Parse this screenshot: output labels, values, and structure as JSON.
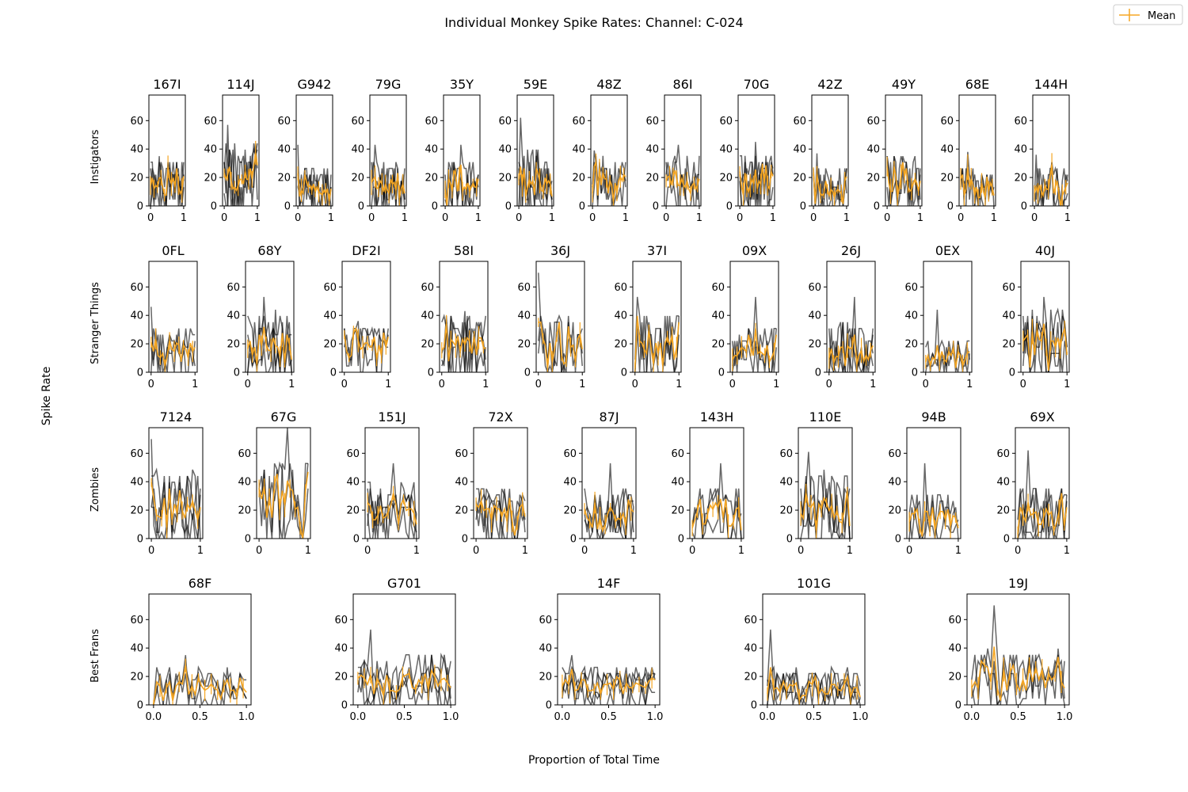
{
  "figure": {
    "title": "Individual Monkey Spike Rates: Channel: C-024",
    "xlabel": "Proportion of Total Time",
    "ylabel": "Spike Rate",
    "legend": {
      "label": "Mean",
      "placement": "top-right",
      "color": "#f5a623"
    }
  },
  "colors": {
    "trace": "#000000",
    "trace_opacity": 0.6,
    "mean": "#f5a623",
    "axes": "#000000"
  },
  "chart_data": {
    "type": "line",
    "ylim": [
      0,
      78
    ],
    "yticks": [
      0,
      20,
      40,
      60
    ],
    "grid": false,
    "groups": [
      {
        "name": "Instigators",
        "xlim": [
          -0.05,
          1.05
        ],
        "xticks": [
          0,
          1
        ],
        "xtick_labels": [
          "0",
          "1"
        ],
        "panels": [
          {
            "id": "167I",
            "peak": 35,
            "level": 15
          },
          {
            "id": "114J",
            "peak": 57,
            "level": 20
          },
          {
            "id": "G942",
            "peak": 43,
            "level": 14
          },
          {
            "id": "79G",
            "peak": 43,
            "level": 15
          },
          {
            "id": "35Y",
            "peak": 43,
            "level": 15
          },
          {
            "id": "59E",
            "peak": 62,
            "level": 18
          },
          {
            "id": "48Z",
            "peak": 39,
            "level": 16
          },
          {
            "id": "86I",
            "peak": 43,
            "level": 16
          },
          {
            "id": "70G",
            "peak": 45,
            "level": 17
          },
          {
            "id": "42Z",
            "peak": 37,
            "level": 13
          },
          {
            "id": "49Y",
            "peak": 35,
            "level": 17
          },
          {
            "id": "68E",
            "peak": 38,
            "level": 13
          },
          {
            "id": "144H",
            "peak": 36,
            "level": 14
          }
        ]
      },
      {
        "name": "Stranger Things",
        "xlim": [
          -0.05,
          1.05
        ],
        "xticks": [
          0,
          1
        ],
        "xtick_labels": [
          "0",
          "1"
        ],
        "panels": [
          {
            "id": "0FL",
            "peak": 46,
            "level": 14
          },
          {
            "id": "68Y",
            "peak": 53,
            "level": 20
          },
          {
            "id": "DF2I",
            "peak": 36,
            "level": 15
          },
          {
            "id": "58I",
            "peak": 43,
            "level": 18
          },
          {
            "id": "36J",
            "peak": 70,
            "level": 18
          },
          {
            "id": "37I",
            "peak": 53,
            "level": 18
          },
          {
            "id": "09X",
            "peak": 53,
            "level": 15
          },
          {
            "id": "26J",
            "peak": 53,
            "level": 16
          },
          {
            "id": "0EX",
            "peak": 44,
            "level": 10
          },
          {
            "id": "40J",
            "peak": 53,
            "level": 20
          }
        ]
      },
      {
        "name": "Zombies",
        "xlim": [
          -0.05,
          1.05
        ],
        "xticks": [
          0,
          1
        ],
        "xtick_labels": [
          "0",
          "1"
        ],
        "panels": [
          {
            "id": "7124",
            "peak": 70,
            "level": 22
          },
          {
            "id": "67G",
            "peak": 78,
            "level": 24
          },
          {
            "id": "151J",
            "peak": 53,
            "level": 18
          },
          {
            "id": "72X",
            "peak": 35,
            "level": 17
          },
          {
            "id": "87J",
            "peak": 53,
            "level": 16
          },
          {
            "id": "143H",
            "peak": 53,
            "level": 17
          },
          {
            "id": "110E",
            "peak": 61,
            "level": 22
          },
          {
            "id": "94B",
            "peak": 53,
            "level": 15
          },
          {
            "id": "69X",
            "peak": 62,
            "level": 17
          }
        ]
      },
      {
        "name": "Best Frans",
        "xlim": [
          -0.05,
          1.05
        ],
        "xticks": [
          0,
          0.5,
          1
        ],
        "xtick_labels": [
          "0.0",
          "0.5",
          "1.0"
        ],
        "panels": [
          {
            "id": "68F",
            "peak": 35,
            "level": 12
          },
          {
            "id": "G701",
            "peak": 53,
            "level": 17
          },
          {
            "id": "14F",
            "peak": 35,
            "level": 12
          },
          {
            "id": "101G",
            "peak": 53,
            "level": 12
          },
          {
            "id": "19J",
            "peak": 70,
            "level": 18
          }
        ]
      }
    ]
  }
}
